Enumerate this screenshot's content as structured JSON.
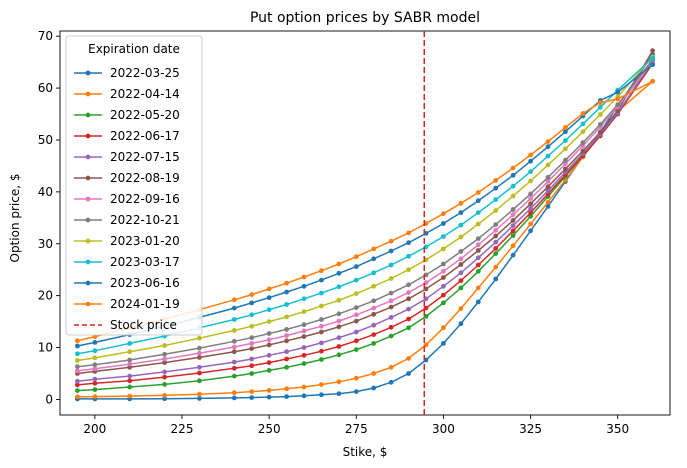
{
  "chart_data": {
    "type": "line",
    "title": "Put option prices by SABR model",
    "xlabel": "Stike, $",
    "ylabel": "Option price, $",
    "xlim": [
      190,
      365
    ],
    "ylim": [
      -3,
      71
    ],
    "xticks": [
      200,
      225,
      250,
      275,
      300,
      325,
      350
    ],
    "yticks": [
      0,
      10,
      20,
      30,
      40,
      50,
      60,
      70
    ],
    "grid": false,
    "legend": {
      "title": "Expiration date",
      "placement": "top-left"
    },
    "vline": {
      "label": "Stock price",
      "x": 294.5,
      "color": "#d62728",
      "style": "dashed"
    },
    "x": [
      195,
      200,
      210,
      220,
      230,
      240,
      245,
      250,
      255,
      260,
      265,
      270,
      275,
      280,
      285,
      290,
      295,
      300,
      305,
      310,
      315,
      320,
      325,
      330,
      335,
      340,
      345,
      350,
      360
    ],
    "series": [
      {
        "name": "2022-03-25",
        "color": "#1f77b4",
        "values": [
          0.1,
          0.1,
          0.1,
          0.15,
          0.2,
          0.3,
          0.35,
          0.45,
          0.55,
          0.7,
          0.9,
          1.1,
          1.5,
          2.2,
          3.3,
          5.0,
          7.6,
          10.8,
          14.6,
          18.8,
          23.2,
          27.8,
          32.5,
          37.2,
          42.0,
          46.8,
          51.5,
          56.5,
          66.5
        ]
      },
      {
        "name": "2022-04-14",
        "color": "#ff7f0e",
        "values": [
          0.5,
          0.55,
          0.65,
          0.8,
          1.0,
          1.3,
          1.5,
          1.75,
          2.05,
          2.4,
          2.85,
          3.4,
          4.1,
          5.0,
          6.2,
          7.9,
          10.5,
          13.8,
          17.5,
          21.5,
          25.5,
          29.6,
          33.8,
          38.0,
          42.3,
          46.7,
          51.0,
          55.5,
          61.3
        ]
      },
      {
        "name": "2022-05-20",
        "color": "#2ca02c",
        "values": [
          1.7,
          1.9,
          2.4,
          2.9,
          3.6,
          4.5,
          5.0,
          5.6,
          6.2,
          6.9,
          7.7,
          8.6,
          9.6,
          10.8,
          12.2,
          13.8,
          16.0,
          18.6,
          21.5,
          24.7,
          28.1,
          31.6,
          35.3,
          39.1,
          43.0,
          46.9,
          50.8,
          55.0,
          64.7
        ]
      },
      {
        "name": "2022-06-17",
        "color": "#d62728",
        "values": [
          2.8,
          3.1,
          3.6,
          4.3,
          5.1,
          6.0,
          6.5,
          7.1,
          7.8,
          8.5,
          9.3,
          10.2,
          11.3,
          12.5,
          13.9,
          15.5,
          17.6,
          20.1,
          22.9,
          25.9,
          29.1,
          32.5,
          36.0,
          39.6,
          43.3,
          47.0,
          50.8,
          55.0,
          64.8
        ]
      },
      {
        "name": "2022-07-15",
        "color": "#9467bd",
        "values": [
          3.5,
          3.9,
          4.5,
          5.3,
          6.2,
          7.2,
          7.8,
          8.5,
          9.2,
          10.0,
          10.9,
          11.9,
          13.0,
          14.3,
          15.8,
          17.4,
          19.4,
          21.8,
          24.4,
          27.3,
          30.3,
          33.5,
          36.8,
          40.2,
          43.8,
          47.4,
          51.1,
          55.2,
          65.2
        ]
      },
      {
        "name": "2022-08-19",
        "color": "#8c564b",
        "values": [
          5.0,
          5.4,
          6.2,
          7.1,
          8.1,
          9.2,
          9.8,
          10.5,
          11.3,
          12.1,
          13.0,
          14.0,
          15.1,
          16.4,
          17.8,
          19.4,
          21.3,
          23.5,
          26.0,
          28.7,
          31.5,
          34.5,
          37.7,
          41.0,
          44.4,
          47.9,
          51.5,
          55.6,
          67.2
        ]
      },
      {
        "name": "2022-09-16",
        "color": "#e377c2",
        "values": [
          5.5,
          5.9,
          6.8,
          7.8,
          8.9,
          10.1,
          10.8,
          11.5,
          12.3,
          13.2,
          14.1,
          15.1,
          16.3,
          17.6,
          19.0,
          20.6,
          22.5,
          24.7,
          27.1,
          29.8,
          32.6,
          35.6,
          38.7,
          42.0,
          45.4,
          48.9,
          52.5,
          56.4,
          65.0
        ]
      },
      {
        "name": "2022-10-21",
        "color": "#7f7f7f",
        "values": [
          6.3,
          6.7,
          7.6,
          8.7,
          9.9,
          11.2,
          11.9,
          12.7,
          13.5,
          14.4,
          15.4,
          16.5,
          17.7,
          19.0,
          20.5,
          22.1,
          24.0,
          26.1,
          28.5,
          31.0,
          33.7,
          36.6,
          39.6,
          42.8,
          46.1,
          49.5,
          53.0,
          56.8,
          65.5
        ]
      },
      {
        "name": "2023-01-20",
        "color": "#bcbd22",
        "values": [
          7.5,
          8.0,
          9.2,
          10.4,
          11.8,
          13.3,
          14.1,
          15.0,
          15.9,
          16.9,
          18.0,
          19.1,
          20.4,
          21.8,
          23.3,
          25.0,
          26.9,
          29.0,
          31.3,
          33.8,
          36.4,
          39.2,
          42.1,
          45.2,
          48.3,
          51.6,
          54.9,
          58.3,
          66.0
        ]
      },
      {
        "name": "2023-03-17",
        "color": "#17becf",
        "values": [
          8.8,
          9.4,
          10.8,
          12.2,
          13.8,
          15.4,
          16.3,
          17.3,
          18.3,
          19.4,
          20.5,
          21.7,
          23.0,
          24.4,
          25.9,
          27.6,
          29.4,
          31.4,
          33.6,
          36.0,
          38.5,
          41.1,
          43.9,
          46.9,
          49.9,
          53.1,
          56.3,
          59.6,
          65.8
        ]
      },
      {
        "name": "2023-06-16",
        "color": "#1f77b4",
        "values": [
          10.3,
          11.0,
          12.5,
          14.1,
          15.8,
          17.6,
          18.6,
          19.6,
          20.7,
          21.8,
          23.0,
          24.3,
          25.6,
          27.1,
          28.6,
          30.2,
          32.0,
          33.9,
          36.0,
          38.3,
          40.7,
          43.2,
          45.9,
          48.7,
          51.6,
          54.6,
          57.6,
          59.2,
          64.5
        ]
      },
      {
        "name": "2024-01-19",
        "color": "#ff7f0e",
        "values": [
          11.3,
          12.1,
          13.8,
          15.5,
          17.3,
          19.2,
          20.2,
          21.3,
          22.4,
          23.6,
          24.8,
          26.1,
          27.5,
          29.0,
          30.5,
          32.1,
          33.9,
          35.8,
          37.8,
          39.9,
          42.2,
          44.6,
          47.1,
          49.7,
          52.4,
          55.1,
          57.2,
          57.9,
          61.3
        ]
      }
    ]
  }
}
